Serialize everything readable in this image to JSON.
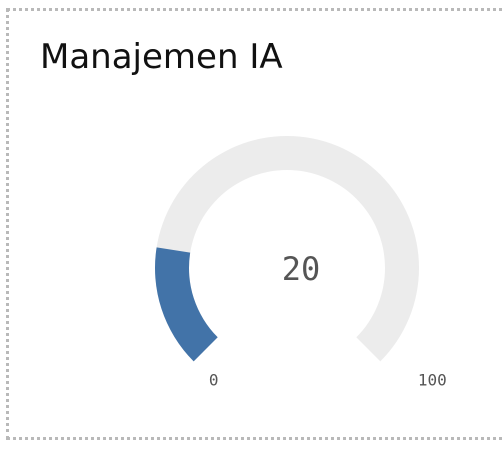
{
  "chart_data": {
    "type": "gauge",
    "title": "Manajemen IA",
    "value": 20,
    "min": 0,
    "max": 100,
    "color": "#4273a8",
    "track_color": "#ececec"
  }
}
